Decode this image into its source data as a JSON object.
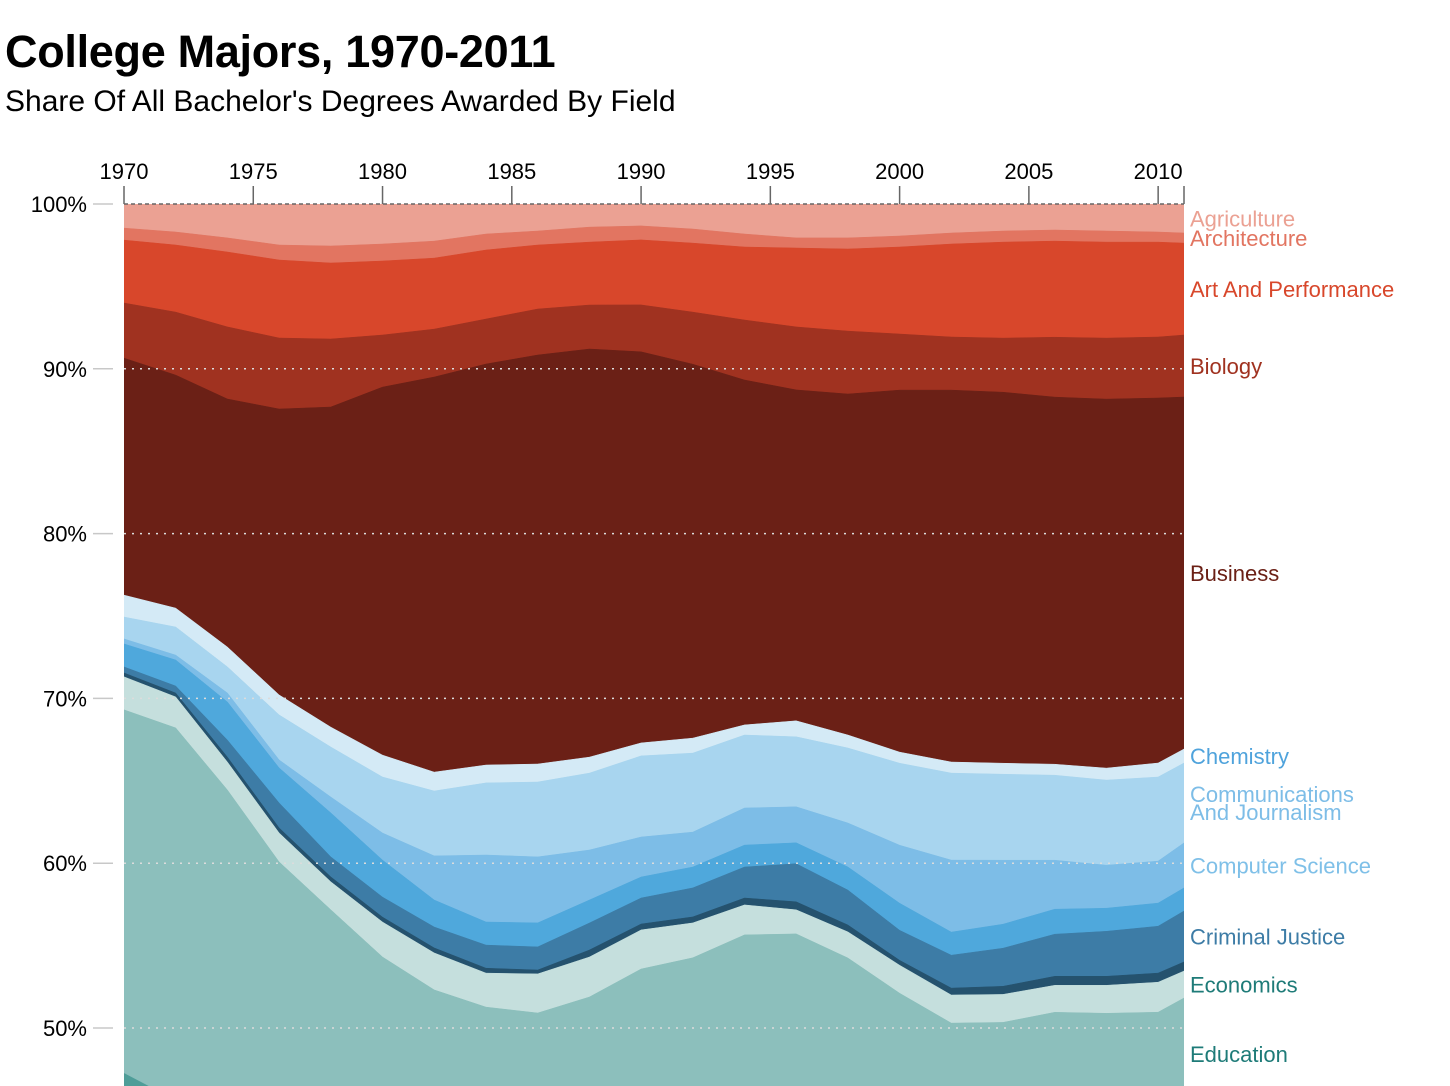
{
  "header": {
    "title": "College Majors, 1970-2011",
    "subtitle": "Share Of All Bachelor's Degrees Awarded By Field"
  },
  "chart_data": {
    "type": "area",
    "stacked": true,
    "title": "College Majors, 1970-2011",
    "subtitle": "Share Of All Bachelor's Degrees Awarded By Field",
    "xlabel": "",
    "ylabel": "",
    "x_ticks": [
      "1970",
      "1975",
      "1980",
      "1985",
      "1990",
      "1995",
      "2000",
      "2005",
      "2010"
    ],
    "y_ticks": [
      "100%",
      "90%",
      "80%",
      "70%",
      "60%",
      "50%"
    ],
    "xlim": [
      1970,
      2011
    ],
    "ylim_visible": [
      46.5,
      100
    ],
    "unit": "percent of all bachelor's degrees",
    "grid": "horizontal dotted",
    "legend": "right-side labels at series end",
    "x": [
      1970,
      1972,
      1974,
      1976,
      1978,
      1980,
      1982,
      1984,
      1986,
      1988,
      1990,
      1992,
      1994,
      1996,
      1998,
      2000,
      2002,
      2004,
      2006,
      2008,
      2010,
      2011
    ],
    "below_color": "#4e9d98",
    "series": [
      {
        "name": "Agriculture",
        "color": "#eba193",
        "label_color": "#eba193",
        "values": [
          1.46,
          1.7,
          2.06,
          2.49,
          2.55,
          2.43,
          2.25,
          1.82,
          1.64,
          1.4,
          1.33,
          1.52,
          1.82,
          2.06,
          2.06,
          1.94,
          1.76,
          1.64,
          1.58,
          1.64,
          1.7,
          1.76
        ]
      },
      {
        "name": "Architecture",
        "color": "#e27561",
        "label_color": "#e27561",
        "values": [
          0.73,
          0.79,
          0.85,
          0.91,
          1.03,
          1.03,
          1.03,
          0.97,
          0.85,
          0.91,
          0.85,
          0.85,
          0.79,
          0.61,
          0.67,
          0.67,
          0.67,
          0.67,
          0.67,
          0.67,
          0.61,
          0.61
        ]
      },
      {
        "name": "Art And Performance",
        "color": "#d8472b",
        "label_color": "#d8472b",
        "values": [
          3.82,
          4.07,
          4.55,
          4.73,
          4.61,
          4.49,
          4.31,
          4.19,
          3.88,
          3.82,
          3.94,
          4.19,
          4.43,
          4.79,
          4.98,
          5.28,
          5.64,
          5.83,
          5.83,
          5.83,
          5.76,
          5.58
        ]
      },
      {
        "name": "Biology",
        "color": "#a03220",
        "label_color": "#a03220",
        "values": [
          3.34,
          3.82,
          4.37,
          4.31,
          4.13,
          3.16,
          2.91,
          2.73,
          2.79,
          2.67,
          2.85,
          3.16,
          3.64,
          3.82,
          3.82,
          3.4,
          3.22,
          3.28,
          3.64,
          3.7,
          3.7,
          3.76
        ]
      },
      {
        "name": "Business",
        "color": "#6b2016",
        "label_color": "#6b2016",
        "values": [
          14.38,
          14.14,
          15.05,
          17.35,
          19.42,
          22.33,
          23.97,
          24.33,
          24.82,
          24.76,
          23.73,
          22.69,
          20.93,
          20.08,
          20.69,
          21.97,
          22.57,
          22.51,
          22.27,
          22.39,
          22.15,
          21.36
        ]
      },
      {
        "name": "Chemistry",
        "color": "#d4eaf6",
        "label_color": "#4fa3dc",
        "values": [
          1.33,
          1.15,
          1.21,
          1.21,
          1.21,
          1.33,
          1.15,
          1.09,
          1.09,
          0.97,
          0.79,
          0.91,
          0.61,
          0.97,
          0.79,
          0.67,
          0.67,
          0.67,
          0.67,
          0.73,
          0.85,
          0.85
        ]
      },
      {
        "name": "Communications And Journalism",
        "color": "#a8d5ef",
        "label_color": "#7dbde7",
        "values": [
          1.33,
          1.7,
          1.58,
          2.73,
          3.03,
          3.4,
          3.94,
          4.37,
          4.55,
          4.67,
          4.92,
          4.79,
          4.43,
          4.25,
          4.55,
          4.98,
          5.28,
          5.22,
          5.16,
          5.16,
          5.1,
          4.85
        ]
      },
      {
        "name": "Computer Science",
        "color": "#7dbde7",
        "label_color": "#7fc0e8",
        "values": [
          0.3,
          0.3,
          0.55,
          0.49,
          0.97,
          1.64,
          2.67,
          4.07,
          4.0,
          3.03,
          2.43,
          2.12,
          2.25,
          2.18,
          2.67,
          3.52,
          4.37,
          3.88,
          2.97,
          2.61,
          2.55,
          2.73
        ]
      },
      {
        "name": "",
        "color": "#4fa8dc",
        "label_color": "#4fa8dc",
        "values": [
          1.4,
          1.58,
          2.31,
          2.12,
          2.67,
          2.25,
          1.64,
          1.4,
          1.46,
          1.4,
          1.27,
          1.27,
          1.33,
          1.27,
          1.4,
          1.64,
          1.4,
          1.46,
          1.52,
          1.4,
          1.4,
          1.4
        ]
      },
      {
        "name": "Criminal Justice",
        "color": "#3d7ca6",
        "label_color": "#3d7ca6",
        "values": [
          0.36,
          0.42,
          1.03,
          1.52,
          1.21,
          1.21,
          1.27,
          1.4,
          1.4,
          1.64,
          1.58,
          1.76,
          1.88,
          2.31,
          2.12,
          1.82,
          2.0,
          2.31,
          2.55,
          2.73,
          2.85,
          3.09
        ]
      },
      {
        "name": "",
        "color": "#25526e",
        "label_color": "#25526e",
        "values": [
          0.24,
          0.24,
          0.3,
          0.3,
          0.3,
          0.3,
          0.3,
          0.3,
          0.24,
          0.42,
          0.36,
          0.36,
          0.42,
          0.49,
          0.42,
          0.3,
          0.42,
          0.49,
          0.55,
          0.55,
          0.55,
          0.55
        ]
      },
      {
        "name": "Economics",
        "color": "#c5dfdd",
        "label_color": "#1e7b78",
        "values": [
          2.0,
          1.88,
          1.7,
          1.76,
          1.7,
          2.12,
          2.25,
          2.06,
          2.37,
          2.43,
          2.37,
          2.12,
          1.82,
          1.46,
          1.58,
          1.7,
          1.7,
          1.7,
          1.64,
          1.7,
          1.82,
          1.64
        ]
      },
      {
        "name": "Education",
        "color": "#8cbfbc",
        "label_color": "#1e7b78",
        "values": [
          22.03,
          22.57,
          19.42,
          15.05,
          12.44,
          9.59,
          7.58,
          6.55,
          6.19,
          6.86,
          7.95,
          8.31,
          9.28,
          9.28,
          8.31,
          6.8,
          5.28,
          5.34,
          5.95,
          5.89,
          5.95,
          6.8
        ]
      }
    ]
  }
}
